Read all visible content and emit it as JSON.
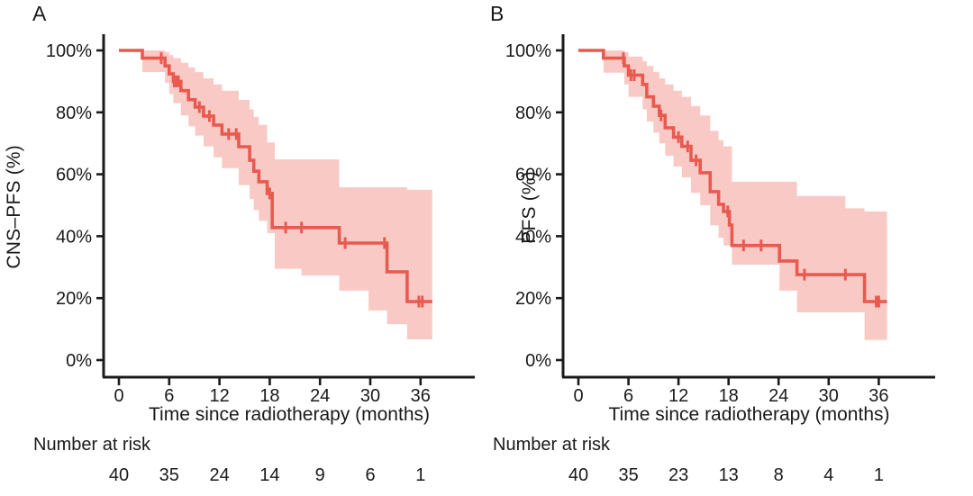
{
  "colors": {
    "curve": "#e85a50",
    "confidence_band": "#f9cac5",
    "axis": "#1a1a1a",
    "background": "#ffffff"
  },
  "chart_data": [
    {
      "type": "line",
      "km_variant": "kaplan-meier-step-with-ci",
      "panel_letter": "A",
      "ylabel": "CNS–PFS (%)",
      "xlabel": "Time since radiotherapy (months)",
      "y_tick_labels": [
        "100%",
        "80%",
        "60%",
        "40%",
        "20%",
        "0%"
      ],
      "y_tick_values": [
        100,
        80,
        60,
        40,
        20,
        0
      ],
      "x_tick_labels": [
        "0",
        "6",
        "12",
        "18",
        "24",
        "30",
        "36"
      ],
      "x_tick_values": [
        0,
        6,
        12,
        18,
        24,
        30,
        36
      ],
      "xlim": [
        0,
        38.5
      ],
      "ylim": [
        0,
        100
      ],
      "grid": false,
      "legend": "none",
      "risk_label": "Number at risk",
      "number_at_risk": [
        40,
        35,
        24,
        14,
        9,
        6,
        1
      ],
      "curve_end_month": 37.4,
      "steps": [
        [
          0,
          100
        ],
        [
          2.8,
          97.5
        ],
        [
          5.5,
          95.0
        ],
        [
          6.0,
          92.4
        ],
        [
          6.5,
          90.0
        ],
        [
          7.4,
          87.0
        ],
        [
          8.3,
          84.1
        ],
        [
          9.1,
          81.7
        ],
        [
          10.1,
          78.8
        ],
        [
          11.3,
          75.9
        ],
        [
          12.3,
          73.0
        ],
        [
          14.3,
          68.9
        ],
        [
          15.6,
          64.5
        ],
        [
          16.1,
          61.0
        ],
        [
          16.7,
          57.6
        ],
        [
          17.7,
          53.8
        ],
        [
          18.3,
          42.8
        ],
        [
          26.3,
          37.8
        ],
        [
          32.0,
          28.5
        ],
        [
          34.4,
          18.9
        ]
      ],
      "censor_marks": [
        [
          5.05,
          97.5
        ],
        [
          6.6,
          90.0
        ],
        [
          6.85,
          90.0
        ],
        [
          7.1,
          90.0
        ],
        [
          9.6,
          81.7
        ],
        [
          10.8,
          78.8
        ],
        [
          13.1,
          73.0
        ],
        [
          14.0,
          73.0
        ],
        [
          18.0,
          53.8
        ],
        [
          19.9,
          42.8
        ],
        [
          21.8,
          42.8
        ],
        [
          27.0,
          37.8
        ],
        [
          31.7,
          37.8
        ],
        [
          35.8,
          18.9
        ],
        [
          36.2,
          18.9
        ]
      ],
      "confidence_band": [
        [
          2.8,
          93.0,
          100
        ],
        [
          5.5,
          89.5,
          99.5
        ],
        [
          6.0,
          86.0,
          98.5
        ],
        [
          6.5,
          83.0,
          97.5
        ],
        [
          7.4,
          79.0,
          96.0
        ],
        [
          8.3,
          75.5,
          94.5
        ],
        [
          9.1,
          72.5,
          93.0
        ],
        [
          10.1,
          69.0,
          91.0
        ],
        [
          11.3,
          65.5,
          89.0
        ],
        [
          12.3,
          62.0,
          87.0
        ],
        [
          14.3,
          56.5,
          84.0
        ],
        [
          15.6,
          52.0,
          81.0
        ],
        [
          16.1,
          48.5,
          78.5
        ],
        [
          16.7,
          45.0,
          76.0
        ],
        [
          17.7,
          41.0,
          70.3
        ],
        [
          18.6,
          29.5,
          64.8
        ],
        [
          21.8,
          27.3,
          64.8
        ],
        [
          26.3,
          22.4,
          55.8
        ],
        [
          29.8,
          16.0,
          55.8
        ],
        [
          32.0,
          11.6,
          55.8
        ],
        [
          34.4,
          6.7,
          55.0
        ]
      ]
    },
    {
      "type": "line",
      "km_variant": "kaplan-meier-step-with-ci",
      "panel_letter": "B",
      "ylabel": "PFS (%)",
      "xlabel": "Time since radiotherapy (months)",
      "y_tick_labels": [
        "100%",
        "80%",
        "60%",
        "40%",
        "20%",
        "0%"
      ],
      "y_tick_values": [
        100,
        80,
        60,
        40,
        20,
        0
      ],
      "x_tick_labels": [
        "0",
        "6",
        "12",
        "18",
        "24",
        "30",
        "36"
      ],
      "x_tick_values": [
        0,
        6,
        12,
        18,
        24,
        30,
        36
      ],
      "xlim": [
        0,
        38.5
      ],
      "ylim": [
        0,
        100
      ],
      "grid": false,
      "legend": "none",
      "risk_label": "Number at risk",
      "number_at_risk": [
        40,
        35,
        23,
        13,
        8,
        4,
        1
      ],
      "curve_end_month": 37.0,
      "steps": [
        [
          0,
          100
        ],
        [
          3.0,
          97.5
        ],
        [
          5.5,
          95.0
        ],
        [
          6.0,
          92.0
        ],
        [
          7.7,
          89.0
        ],
        [
          8.2,
          85.0
        ],
        [
          9.0,
          82.0
        ],
        [
          9.7,
          79.0
        ],
        [
          10.4,
          75.0
        ],
        [
          11.4,
          72.0
        ],
        [
          12.4,
          69.0
        ],
        [
          13.5,
          64.5
        ],
        [
          14.6,
          60.5
        ],
        [
          15.8,
          54.4
        ],
        [
          16.8,
          50.3
        ],
        [
          17.4,
          48.0
        ],
        [
          18.1,
          43.6
        ],
        [
          18.4,
          37.0
        ],
        [
          24.1,
          32.0
        ],
        [
          26.2,
          27.6
        ],
        [
          34.3,
          18.9
        ]
      ],
      "censor_marks": [
        [
          5.4,
          97.5
        ],
        [
          6.3,
          92.0
        ],
        [
          6.7,
          92.0
        ],
        [
          9.9,
          79.0
        ],
        [
          12.0,
          72.0
        ],
        [
          13.1,
          69.0
        ],
        [
          14.1,
          64.5
        ],
        [
          17.9,
          48.0
        ],
        [
          19.8,
          37.0
        ],
        [
          21.9,
          37.0
        ],
        [
          27.1,
          27.6
        ],
        [
          32.0,
          27.6
        ],
        [
          35.7,
          18.9
        ],
        [
          36.0,
          18.9
        ]
      ],
      "confidence_band": [
        [
          3.0,
          92.8,
          100
        ],
        [
          5.5,
          89.0,
          99.5
        ],
        [
          6.0,
          85.0,
          98.0
        ],
        [
          7.7,
          81.0,
          96.5
        ],
        [
          8.2,
          77.0,
          95.0
        ],
        [
          9.0,
          73.5,
          93.0
        ],
        [
          9.7,
          70.0,
          91.0
        ],
        [
          10.4,
          66.0,
          89.0
        ],
        [
          11.4,
          62.5,
          87.0
        ],
        [
          12.4,
          59.0,
          85.0
        ],
        [
          13.5,
          54.0,
          82.0
        ],
        [
          14.6,
          50.0,
          79.0
        ],
        [
          15.8,
          43.5,
          74.0
        ],
        [
          16.8,
          39.5,
          71.0
        ],
        [
          17.4,
          37.0,
          69.0
        ],
        [
          18.4,
          30.8,
          57.6
        ],
        [
          24.1,
          22.4,
          57.6
        ],
        [
          26.2,
          15.4,
          53.0
        ],
        [
          32.0,
          15.4,
          49.0
        ],
        [
          34.3,
          6.5,
          48.0
        ]
      ]
    }
  ]
}
